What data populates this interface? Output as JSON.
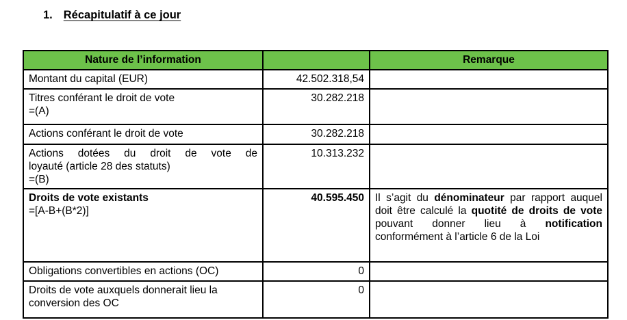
{
  "page": {
    "title_number": "1.",
    "title_text": "Récapitulatif à ce jour"
  },
  "colors": {
    "header_green": "#6dc24a",
    "border": "#000000"
  },
  "table": {
    "header": {
      "col1": "Nature de l’information",
      "col2": "",
      "col3": "Remarque"
    },
    "rows": [
      {
        "label": [
          "Montant du capital (EUR)"
        ],
        "value": "42.502.318,54",
        "remark": []
      },
      {
        "label": [
          "Titres conférant le droit de vote",
          "=(A)"
        ],
        "value": "30.282.218",
        "remark": []
      },
      {
        "label": [
          "Actions conférant le droit de vote"
        ],
        "value": "30.282.218",
        "remark": []
      },
      {
        "label": [
          "Actions dotées du droit de vote de",
          "loyauté (article 28 des statuts)",
          "=(B)"
        ],
        "value": "10.313.232",
        "remark": []
      },
      {
        "label": [
          "Droits de vote existants",
          "=[A-B+(B*2)]"
        ],
        "value": "40.595.450",
        "remark": [
          {
            "text": "Il s’agit du ",
            "bold": false
          },
          {
            "text": "dénominateur",
            "bold": true
          },
          {
            "text": " par rapport auquel doit être calculé la ",
            "bold": false
          },
          {
            "text": "quotité de droits de vote",
            "bold": true
          },
          {
            "text": " pouvant donner lieu à ",
            "bold": false
          },
          {
            "text": "notification",
            "bold": true
          },
          {
            "text": " conformément à l’article 6 de la Loi",
            "bold": false
          }
        ]
      },
      {
        "label": [
          "Obligations convertibles en actions (OC)"
        ],
        "value": "0",
        "remark": []
      },
      {
        "label": [
          "Droits de vote auxquels donnerait lieu la",
          "conversion des OC"
        ],
        "value": "0",
        "remark": []
      }
    ]
  }
}
